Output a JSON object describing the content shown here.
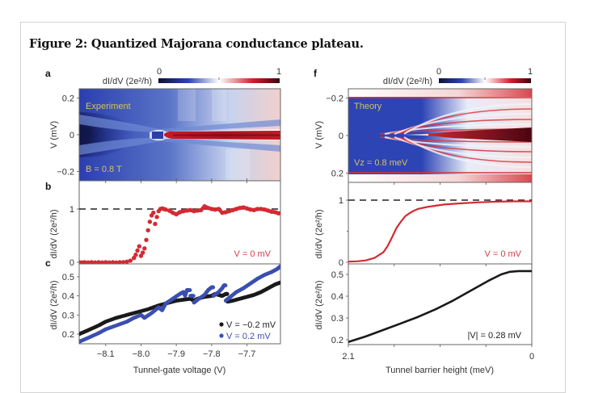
{
  "figure": {
    "title": "Figure 2: Quantized Majorana conductance plateau."
  },
  "colors": {
    "red_series": "#d42a33",
    "blue_series": "#3b4fb0",
    "black_series": "#1a1a1a",
    "cmap_low": "#0f1035",
    "cmap_blue": "#2f45b2",
    "cmap_mid": "#ffffff",
    "cmap_red": "#cf1f2b",
    "cmap_high": "#3a0510",
    "annotation_gold": "#d8c25a"
  },
  "chart_data": [
    {
      "id": "a",
      "type": "heatmap",
      "panel_letter": "a",
      "colorbar": {
        "label": "dI/dV (2e²/h)",
        "min_label": "0",
        "max_label": "1",
        "range": [
          0,
          1
        ]
      },
      "ylabel": "V (mV)",
      "yticks": [
        "0.2",
        "0",
        "−0.2"
      ],
      "ytick_values": [
        0.2,
        0,
        -0.2
      ],
      "ylim": [
        -0.25,
        0.25
      ],
      "xlim": [
        -8.175,
        -7.605
      ],
      "annotations": [
        "Experiment",
        "B = 0.8 T"
      ],
      "description": "Zero-bias peak emerges near −7.98 V and persists to −7.6 V; low-conductance dark region at gate < −8.05 V"
    },
    {
      "id": "b",
      "type": "scatter",
      "panel_letter": "b",
      "ylabel": "dI/dV (2e²/h)",
      "yticks": [
        "0",
        "1"
      ],
      "ytick_values": [
        0,
        1
      ],
      "ylim": [
        0,
        1.4
      ],
      "xlim": [
        -8.175,
        -7.605
      ],
      "reference_line": {
        "y": 1,
        "style": "dashed"
      },
      "annotation": "V = 0 mV",
      "series": [
        {
          "name": "V = 0 mV",
          "x": [
            -8.175,
            -8.16,
            -8.14,
            -8.12,
            -8.1,
            -8.08,
            -8.06,
            -8.04,
            -8.03,
            -8.02,
            -8.015,
            -8.01,
            -8.005,
            -8.0,
            -7.995,
            -7.99,
            -7.985,
            -7.98,
            -7.975,
            -7.97,
            -7.965,
            -7.96,
            -7.955,
            -7.95,
            -7.945,
            -7.94,
            -7.935,
            -7.93,
            -7.92,
            -7.91,
            -7.9,
            -7.89,
            -7.88,
            -7.87,
            -7.86,
            -7.85,
            -7.84,
            -7.83,
            -7.82,
            -7.81,
            -7.8,
            -7.79,
            -7.78,
            -7.77,
            -7.76,
            -7.75,
            -7.74,
            -7.73,
            -7.72,
            -7.71,
            -7.7,
            -7.69,
            -7.68,
            -7.67,
            -7.66,
            -7.65,
            -7.64,
            -7.63,
            -7.62,
            -7.61
          ],
          "y": [
            0,
            0,
            0,
            0,
            0,
            0,
            0,
            0.01,
            0.03,
            0.08,
            0.14,
            0.22,
            0.3,
            0.12,
            0.18,
            0.26,
            0.42,
            0.6,
            0.76,
            0.88,
            0.93,
            0.72,
            0.85,
            0.96,
            1.0,
            1.01,
            1.0,
            0.99,
            0.97,
            0.93,
            0.9,
            0.94,
            0.96,
            0.97,
            0.98,
            0.96,
            0.97,
            0.98,
            1.05,
            1.02,
            1.0,
            0.99,
            1.0,
            0.93,
            0.94,
            0.96,
            0.98,
            1.0,
            1.02,
            1.03,
            1.01,
            0.99,
            0.98,
            1.0,
            1.0,
            0.99,
            0.97,
            0.95,
            0.94,
            0.92
          ]
        }
      ]
    },
    {
      "id": "c",
      "type": "scatter",
      "panel_letter": "c",
      "ylabel": "dI/dV (2e²/h)",
      "xlabel": "Tunnel-gate voltage (V)",
      "xticks": [
        "−8.1",
        "−8.0",
        "−7.9",
        "−7.8",
        "−7.7"
      ],
      "xtick_values": [
        -8.1,
        -8.0,
        -7.9,
        -7.8,
        -7.7
      ],
      "yticks": [
        "0.2",
        "0.3",
        "0.4",
        "0.5"
      ],
      "ytick_values": [
        0.2,
        0.3,
        0.4,
        0.5
      ],
      "ylim": [
        0.15,
        0.55
      ],
      "xlim": [
        -8.175,
        -7.605
      ],
      "legend": {
        "placement": "bottom-right",
        "entries": [
          "V = −0.2 mV",
          "V =  0.2 mV"
        ]
      },
      "series": [
        {
          "name": "V = −0.2 mV",
          "color": "#1a1a1a",
          "x": [
            -8.175,
            -8.15,
            -8.12,
            -8.1,
            -8.07,
            -8.04,
            -8.01,
            -7.98,
            -7.95,
            -7.92,
            -7.9,
            -7.88,
            -7.86,
            -7.85,
            -7.84,
            -7.82,
            -7.8,
            -7.79,
            -7.78,
            -7.77,
            -7.76,
            -7.755,
            -7.74,
            -7.72,
            -7.7,
            -7.68,
            -7.66,
            -7.64,
            -7.62,
            -7.605
          ],
          "y": [
            0.2,
            0.22,
            0.245,
            0.265,
            0.285,
            0.3,
            0.315,
            0.33,
            0.35,
            0.365,
            0.375,
            0.38,
            0.385,
            0.375,
            0.385,
            0.395,
            0.4,
            0.41,
            0.405,
            0.4,
            0.41,
            0.37,
            0.375,
            0.385,
            0.395,
            0.405,
            0.42,
            0.44,
            0.46,
            0.47
          ]
        },
        {
          "name": "V = 0.2 mV",
          "color": "#3b4fb0",
          "x": [
            -8.175,
            -8.15,
            -8.12,
            -8.1,
            -8.07,
            -8.04,
            -8.02,
            -8.0,
            -7.99,
            -7.97,
            -7.95,
            -7.94,
            -7.93,
            -7.91,
            -7.89,
            -7.88,
            -7.875,
            -7.87,
            -7.86,
            -7.85,
            -7.84,
            -7.82,
            -7.81,
            -7.8,
            -7.795,
            -7.78,
            -7.77,
            -7.765,
            -7.76,
            -7.75,
            -7.73,
            -7.71,
            -7.69,
            -7.67,
            -7.65,
            -7.63,
            -7.615,
            -7.605
          ],
          "y": [
            0.16,
            0.18,
            0.205,
            0.225,
            0.245,
            0.265,
            0.285,
            0.3,
            0.285,
            0.31,
            0.34,
            0.325,
            0.36,
            0.385,
            0.41,
            0.42,
            0.4,
            0.43,
            0.4,
            0.365,
            0.38,
            0.405,
            0.43,
            0.445,
            0.4,
            0.42,
            0.44,
            0.455,
            0.375,
            0.39,
            0.42,
            0.44,
            0.465,
            0.49,
            0.51,
            0.525,
            0.54,
            0.555
          ]
        }
      ]
    },
    {
      "id": "f",
      "type": "heatmap",
      "panel_letter": "f",
      "colorbar": {
        "label": "dI/dV (2e²/h)",
        "min_label": "0",
        "max_label": "1",
        "range": [
          0,
          1
        ]
      },
      "ylabel": "V (mV)",
      "yticks": [
        "−0.2",
        "0",
        "0.2"
      ],
      "ytick_values": [
        -0.2,
        0,
        0.2
      ],
      "ylim": [
        -0.25,
        0.25
      ],
      "xlim": [
        2.1,
        0
      ],
      "annotations": [
        "Theory",
        "Vz = 0.8 meV"
      ],
      "description": "Simulated zero-bias peak forming from barrier height ~1.5 meV toward 0, with sub-gap resonances fanning out"
    },
    {
      "id": "g",
      "type": "line",
      "ylabel": "dI/dV (2e²/h)",
      "yticks": [
        "0",
        "1"
      ],
      "ytick_values": [
        0,
        1
      ],
      "ylim": [
        0,
        1.4
      ],
      "xlim": [
        2.1,
        0
      ],
      "reference_line": {
        "y": 1,
        "style": "dashed"
      },
      "annotation": "V = 0 mV",
      "series": [
        {
          "name": "V = 0 mV",
          "x": [
            2.1,
            2.0,
            1.9,
            1.8,
            1.7,
            1.65,
            1.6,
            1.55,
            1.5,
            1.45,
            1.4,
            1.35,
            1.3,
            1.2,
            1.1,
            1.0,
            0.8,
            0.6,
            0.4,
            0.2,
            0.0
          ],
          "y": [
            0.01,
            0.015,
            0.03,
            0.07,
            0.16,
            0.26,
            0.4,
            0.55,
            0.65,
            0.74,
            0.79,
            0.83,
            0.86,
            0.89,
            0.91,
            0.93,
            0.95,
            0.965,
            0.975,
            0.98,
            0.98
          ]
        }
      ]
    },
    {
      "id": "h",
      "type": "line",
      "ylabel": "dI/dV (2e²/h)",
      "xlabel": "Tunnel barrier height (meV)",
      "xticks": [
        "2.1",
        "0"
      ],
      "xtick_values": [
        2.1,
        0
      ],
      "yticks": [
        "0.2",
        "0.3",
        "0.4",
        "0.5"
      ],
      "ytick_values": [
        0.2,
        0.3,
        0.4,
        0.5
      ],
      "ylim": [
        0.185,
        0.525
      ],
      "xlim": [
        2.1,
        0
      ],
      "annotation": "|V| = 0.28 mV",
      "series": [
        {
          "name": "|V| = 0.28 mV",
          "x": [
            2.1,
            1.9,
            1.7,
            1.5,
            1.3,
            1.1,
            0.9,
            0.7,
            0.5,
            0.35,
            0.25,
            0.15,
            0.05,
            0.0
          ],
          "y": [
            0.19,
            0.215,
            0.245,
            0.275,
            0.305,
            0.34,
            0.38,
            0.425,
            0.47,
            0.5,
            0.512,
            0.515,
            0.515,
            0.515
          ]
        }
      ]
    }
  ]
}
